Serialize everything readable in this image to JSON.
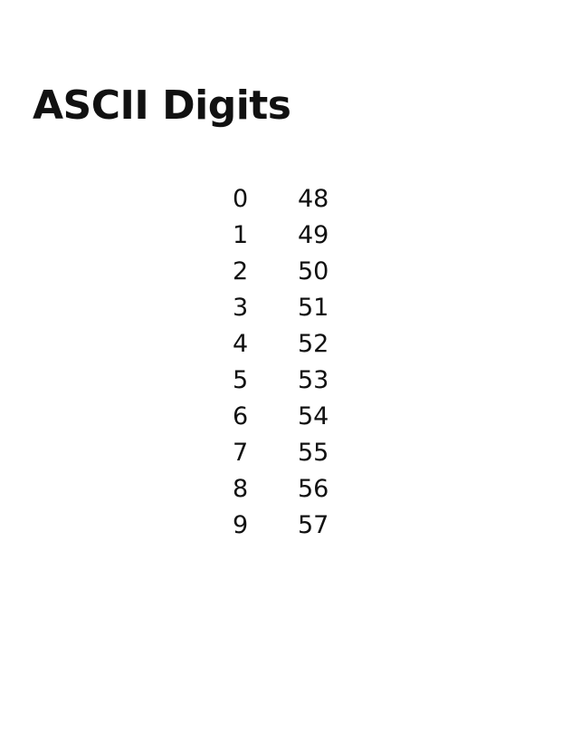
{
  "page": {
    "title": "ASCII Digits"
  },
  "rows": [
    {
      "digit": "0",
      "code": "48"
    },
    {
      "digit": "1",
      "code": "49"
    },
    {
      "digit": "2",
      "code": "50"
    },
    {
      "digit": "3",
      "code": "51"
    },
    {
      "digit": "4",
      "code": "52"
    },
    {
      "digit": "5",
      "code": "53"
    },
    {
      "digit": "6",
      "code": "54"
    },
    {
      "digit": "7",
      "code": "55"
    },
    {
      "digit": "8",
      "code": "56"
    },
    {
      "digit": "9",
      "code": "57"
    }
  ]
}
